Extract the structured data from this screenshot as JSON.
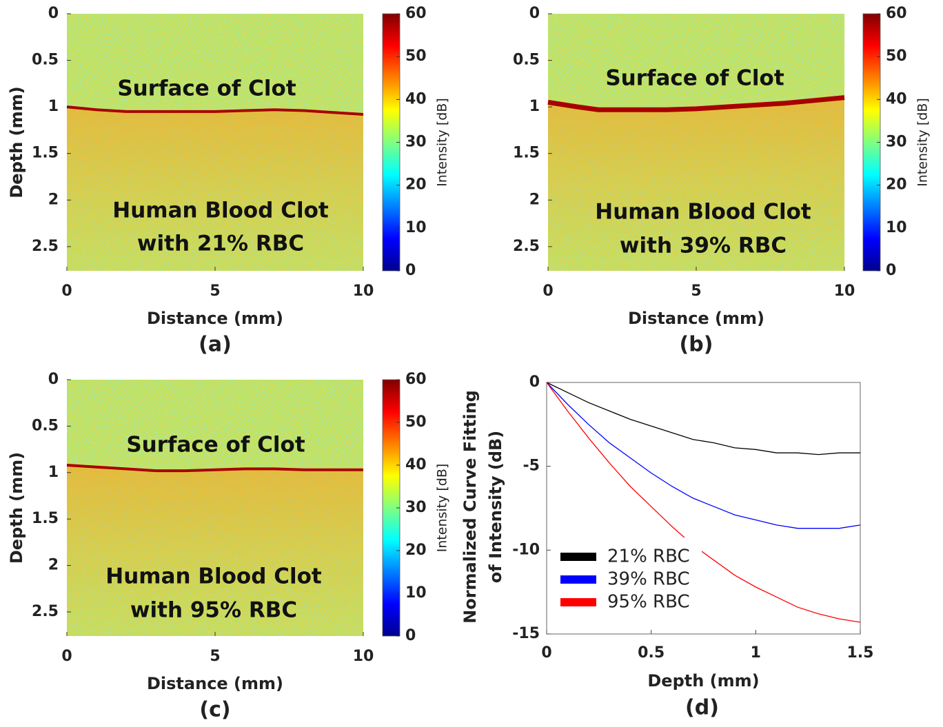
{
  "chart_data": [
    {
      "type": "heatmap",
      "title": "(a)",
      "xlabel": "Distance (mm)",
      "ylabel": "Depth (mm)",
      "xlim": [
        0,
        10
      ],
      "xticks": [
        0,
        5,
        10
      ],
      "ylim": [
        0,
        2.76
      ],
      "y_reversed": true,
      "yticks": [
        0,
        0.5,
        1,
        1.5,
        2,
        2.5
      ],
      "colormap": "jet",
      "clim": [
        0,
        60
      ],
      "cticks": [
        0,
        10,
        20,
        30,
        40,
        50,
        60
      ],
      "colorbar_label": "Intensity [dB]",
      "annotations": [
        "Surface of Clot",
        "Human Blood Clot",
        "with 21% RBC"
      ],
      "x": [
        0,
        1,
        2,
        3,
        4,
        5,
        6,
        7,
        8,
        9,
        10
      ],
      "values": [
        1.0,
        1.03,
        1.05,
        1.05,
        1.05,
        1.05,
        1.04,
        1.03,
        1.04,
        1.06,
        1.08
      ],
      "color": "#a80000"
    },
    {
      "type": "heatmap",
      "title": "(b)",
      "xlabel": "Distance (mm)",
      "ylabel": "Depth (mm)",
      "xlim": [
        0,
        10
      ],
      "xticks": [
        0,
        5,
        10
      ],
      "ylim": [
        0,
        2.76
      ],
      "y_reversed": true,
      "yticks": [
        0,
        0.5,
        1,
        1.5,
        2,
        2.5
      ],
      "colormap": "jet",
      "clim": [
        0,
        60
      ],
      "cticks": [
        0,
        10,
        20,
        30,
        40,
        50,
        60
      ],
      "colorbar_label": "Intensity [dB]",
      "annotations": [
        "Surface of Clot",
        "Human Blood Clot",
        "with 39% RBC"
      ],
      "x": [
        0,
        1,
        1.7,
        3,
        4,
        5,
        6,
        7,
        8,
        9,
        10
      ],
      "values": [
        0.95,
        1.0,
        1.03,
        1.03,
        1.03,
        1.02,
        1.0,
        0.98,
        0.96,
        0.93,
        0.9
      ],
      "color": "#a80000"
    },
    {
      "type": "heatmap",
      "title": "(c)",
      "xlabel": "Distance (mm)",
      "ylabel": "Depth (mm)",
      "xlim": [
        0,
        10
      ],
      "xticks": [
        0,
        5,
        10
      ],
      "ylim": [
        0,
        2.76
      ],
      "y_reversed": true,
      "yticks": [
        0,
        0.5,
        1,
        1.5,
        2,
        2.5
      ],
      "colormap": "jet",
      "clim": [
        0,
        60
      ],
      "cticks": [
        0,
        10,
        20,
        30,
        40,
        50,
        60
      ],
      "colorbar_label": "Intensity [dB]",
      "annotations": [
        "Surface of Clot",
        "Human Blood Clot",
        "with 95% RBC"
      ],
      "x": [
        0,
        1,
        2,
        3,
        4,
        5,
        6,
        7,
        8,
        9,
        10
      ],
      "values": [
        0.92,
        0.94,
        0.96,
        0.98,
        0.98,
        0.97,
        0.96,
        0.96,
        0.97,
        0.97,
        0.97
      ],
      "color": "#a80000"
    },
    {
      "type": "line",
      "title": "(d)",
      "xlabel": "Depth (mm)",
      "ylabel": [
        "Normalized Curve Fitting",
        "of Intensity (dB)"
      ],
      "xlim": [
        0,
        1.5
      ],
      "xticks": [
        0,
        0.5,
        1,
        1.5
      ],
      "ylim": [
        -15,
        0
      ],
      "yticks": [
        0,
        -5,
        -10,
        -15
      ],
      "legend": "lower-left",
      "x": [
        0,
        0.1,
        0.2,
        0.3,
        0.4,
        0.5,
        0.6,
        0.7,
        0.8,
        0.9,
        1.0,
        1.1,
        1.2,
        1.3,
        1.4,
        1.5
      ],
      "series": [
        {
          "name": "21% RBC",
          "color": "#000000",
          "values": [
            0,
            -0.6,
            -1.2,
            -1.7,
            -2.2,
            -2.6,
            -3.0,
            -3.4,
            -3.6,
            -3.9,
            -4.0,
            -4.2,
            -4.2,
            -4.3,
            -4.2,
            -4.2
          ]
        },
        {
          "name": "39% RBC",
          "color": "#0000ff",
          "values": [
            0,
            -1.3,
            -2.5,
            -3.6,
            -4.5,
            -5.4,
            -6.2,
            -6.9,
            -7.4,
            -7.9,
            -8.2,
            -8.5,
            -8.7,
            -8.7,
            -8.7,
            -8.5
          ]
        },
        {
          "name": "95% RBC",
          "color": "#ff0000",
          "values": [
            0,
            -1.7,
            -3.3,
            -4.8,
            -6.2,
            -7.4,
            -8.6,
            -9.7,
            -10.6,
            -11.5,
            -12.2,
            -12.8,
            -13.4,
            -13.8,
            -14.1,
            -14.3
          ]
        }
      ]
    }
  ]
}
